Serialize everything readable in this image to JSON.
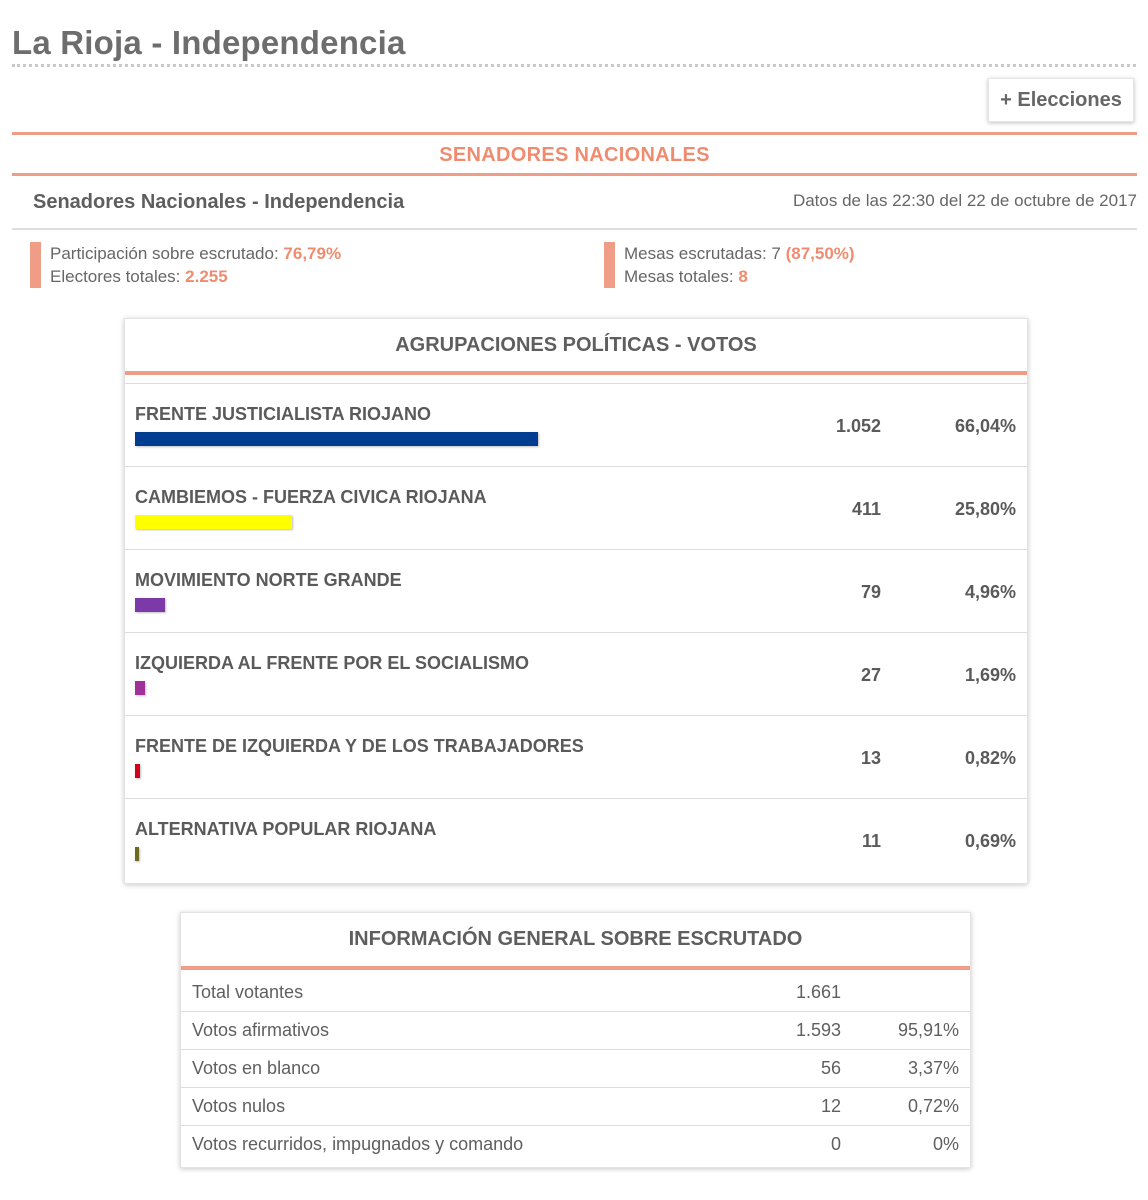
{
  "page": {
    "title": "La Rioja - Independencia",
    "elecciones_button": "+ Elecciones"
  },
  "section": {
    "title": "SENADORES NACIONALES",
    "subtitle": "Senadores Nacionales - Independencia",
    "data_time": "Datos de las 22:30 del 22 de octubre de 2017"
  },
  "stats": {
    "participacion_label": "Participación sobre escrutado:",
    "participacion_value": "76,79%",
    "electores_label": "Electores totales:",
    "electores_value": "2.255",
    "mesas_escrutadas_label": "Mesas escrutadas: 7",
    "mesas_escrutadas_value": "(87,50%)",
    "mesas_totales_label": "Mesas totales:",
    "mesas_totales_value": "8"
  },
  "parties": {
    "header": "AGRUPACIONES POLÍTICAS - VOTOS",
    "rows": [
      {
        "name": "FRENTE JUSTICIALISTA RIOJANO",
        "votes": "1.052",
        "percent": "66,04%",
        "share": 66.04,
        "color": "#003c8f"
      },
      {
        "name": "CAMBIEMOS - FUERZA CIVICA RIOJANA",
        "votes": "411",
        "percent": "25,80%",
        "share": 25.8,
        "color": "#ffff00"
      },
      {
        "name": "MOVIMIENTO NORTE GRANDE",
        "votes": "79",
        "percent": "4,96%",
        "share": 4.96,
        "color": "#7b3aa8"
      },
      {
        "name": "IZQUIERDA AL FRENTE POR EL SOCIALISMO",
        "votes": "27",
        "percent": "1,69%",
        "share": 1.69,
        "color": "#a0309a"
      },
      {
        "name": "FRENTE DE IZQUIERDA Y DE LOS TRABAJADORES",
        "votes": "13",
        "percent": "0,82%",
        "share": 0.82,
        "color": "#d0021b"
      },
      {
        "name": "ALTERNATIVA POPULAR RIOJANA",
        "votes": "11",
        "percent": "0,69%",
        "share": 0.69,
        "color": "#6b6b1e"
      }
    ]
  },
  "general_info": {
    "header": "INFORMACIÓN GENERAL SOBRE ESCRUTADO",
    "rows": [
      {
        "label": "Total votantes",
        "value": "1.661",
        "percent": ""
      },
      {
        "label": "Votos afirmativos",
        "value": "1.593",
        "percent": "95,91%"
      },
      {
        "label": "Votos en blanco",
        "value": "56",
        "percent": "3,37%"
      },
      {
        "label": "Votos nulos",
        "value": "12",
        "percent": "0,72%"
      },
      {
        "label": "Votos recurridos, impugnados y comando",
        "value": "0",
        "percent": "0%"
      }
    ]
  }
}
